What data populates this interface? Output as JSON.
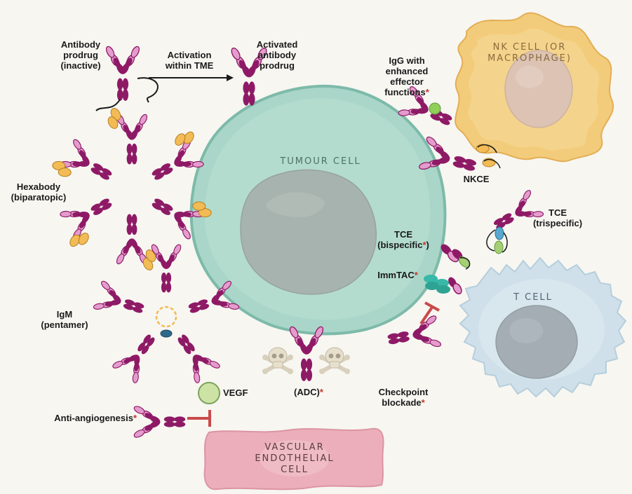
{
  "colors": {
    "antibody": "#8e1a66",
    "antibody_light": "#e49ccd",
    "tumour_fill": "#a9d6c8",
    "tumour_stroke": "#7dbaa9",
    "nucleus": "#a7b3ae",
    "nk_fill": "#f2cc7a",
    "nk_nucleus": "#dcc3b3",
    "tcell_fill": "#cfe0ea",
    "tcell_nucleus": "#a3adb3",
    "vascular_fill": "#ecaebb",
    "inhibit": "#c94a4a",
    "vegf_fill": "#cde3a6",
    "vegf_stroke": "#7ea35b",
    "teal": "#38b8a8",
    "yellow": "#f2bb55",
    "green": "#a5cf74",
    "blue": "#58a8cf"
  },
  "labels": {
    "antibody_prodrug": [
      "Antibody",
      "prodrug",
      "(inactive)"
    ],
    "activation": [
      "Activation",
      "within TME"
    ],
    "activated_prodrug": [
      "Activated",
      "antibody",
      "prodrug"
    ],
    "igg_enhanced": [
      "IgG with",
      "enhanced",
      "effector",
      "functions"
    ],
    "hexabody": [
      "Hexabody",
      "(biparatopic)"
    ],
    "nkce": "NKCE",
    "tce_trispecific": [
      "TCE",
      "(trispecific)"
    ],
    "tce_bispecific_line1": "TCE",
    "tce_bispecific_line2": "(bispecific",
    "tce_bispecific_close": ")",
    "immtac": "ImmTAC",
    "igm": [
      "IgM",
      "(pentamer)"
    ],
    "adc": "(ADC)",
    "checkpoint": [
      "Checkpoint",
      "blockade"
    ],
    "vegf": "VEGF",
    "anti_angiogenesis": "Anti-angiogenesis",
    "asterisk": "*"
  },
  "cells": {
    "tumour": "TUMOUR CELL",
    "nk": [
      "NK CELL (OR",
      "MACROPHAGE)"
    ],
    "tcell": "T CELL",
    "vascular": [
      "VASCULAR",
      "ENDOTHELIAL",
      "CELL"
    ]
  }
}
